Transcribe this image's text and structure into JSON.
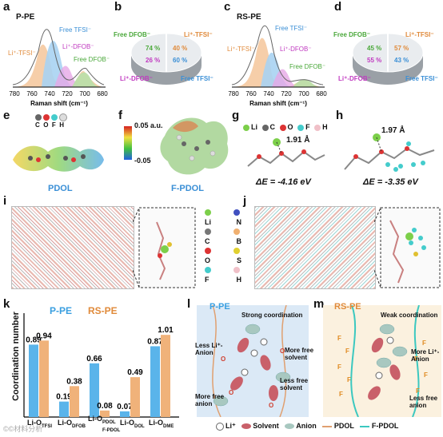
{
  "panels": {
    "a": {
      "letter": "a",
      "title": "P-PE",
      "xlabel": "Raman shift (cm⁻¹)",
      "ticks": [
        "780",
        "760",
        "740",
        "720",
        "700",
        "680"
      ],
      "peak_labels": [
        "Li⁺-TFSI⁻",
        "Free TFSI⁻",
        "Li⁺-DFOB⁻",
        "Free DFOB⁻"
      ]
    },
    "b": {
      "letter": "b",
      "labels": {
        "free_dfob": "Free DFOB⁻",
        "li_tfsi": "Li⁺-TFSI⁻",
        "li_dfob": "Li⁺-DFOB⁻",
        "free_tfsi": "Free TFSI⁻"
      },
      "values": {
        "p74": "74 %",
        "p40": "40 %",
        "p26": "26 %",
        "p60": "60 %"
      }
    },
    "c": {
      "letter": "c",
      "title": "RS-PE",
      "xlabel": "Raman shift (cm⁻¹)",
      "ticks": [
        "780",
        "760",
        "740",
        "720",
        "700",
        "680"
      ],
      "peak_labels": [
        "Li⁺-TFSI⁻",
        "Free TFSI⁻",
        "Li⁺-DFOB⁻",
        "Free DFOB⁻"
      ]
    },
    "d": {
      "letter": "d",
      "labels": {
        "free_dfob": "Free DFOB⁻",
        "li_tfsi": "Li⁺-TFSI⁻",
        "li_dfob": "Li⁺-DFOB⁻",
        "free_tfsi": "Free TFSI⁻"
      },
      "values": {
        "p45": "45 %",
        "p57": "57 %",
        "p55": "55 %",
        "p43": "43 %"
      }
    },
    "e": {
      "letter": "e",
      "name": "PDOL",
      "atoms": [
        "C",
        "O",
        "F",
        "H"
      ]
    },
    "scale": {
      "max": "0.05 a.u.",
      "min": "-0.05"
    },
    "f": {
      "letter": "f",
      "name": "F-PDOL"
    },
    "g": {
      "letter": "g",
      "atoms": [
        "Li",
        "C",
        "O",
        "F",
        "H"
      ],
      "distance": "1.91 Å",
      "energy": "ΔE = -4.16 eV"
    },
    "h": {
      "letter": "h",
      "distance": "1.97 Å",
      "energy": "ΔE = -3.35 eV"
    },
    "i": {
      "letter": "i"
    },
    "j": {
      "letter": "j"
    },
    "legend_atoms": [
      "Li",
      "N",
      "C",
      "B",
      "O",
      "S",
      "F",
      "H"
    ],
    "k": {
      "letter": "k",
      "series": [
        "P-PE",
        "RS-PE"
      ],
      "ylabel": "Coordination number"
    },
    "l": {
      "letter": "l",
      "title": "P-PE",
      "labels": {
        "strong": "Strong coordination",
        "less_li_anion": "Less Li⁺-Anion",
        "more_free_solvent": "More free solvent",
        "less_free_solvent": "Less free solvent",
        "more_free_anion": "More free anion"
      }
    },
    "m": {
      "letter": "m",
      "title": "RS-PE",
      "labels": {
        "weak": "Weak coordination",
        "more_li_anion": "More Li⁺-Anion",
        "less_free_anion": "Less free anion"
      }
    },
    "bottom_legend": {
      "li": "Li⁺",
      "solvent": "Solvent",
      "anion": "Anion",
      "pdol": "PDOL",
      "fpdol": "F-PDOL"
    },
    "watermark": "©©材料分析"
  },
  "chart_data": {
    "type": "bar",
    "categories": [
      "Li-O_TFSI",
      "Li-O_DFOB",
      "Li-O_PDOL/F-PDOL",
      "Li-O_DOL",
      "Li-O_DME"
    ],
    "series": [
      {
        "name": "P-PE",
        "values": [
          0.89,
          0.19,
          0.66,
          0.07,
          0.87
        ],
        "color": "#5ab4ea"
      },
      {
        "name": "RS-PE",
        "values": [
          0.94,
          0.38,
          0.08,
          0.49,
          1.01
        ],
        "color": "#f0b27a"
      }
    ],
    "ylabel": "Coordination number",
    "ylim": [
      0,
      1.1
    ]
  }
}
